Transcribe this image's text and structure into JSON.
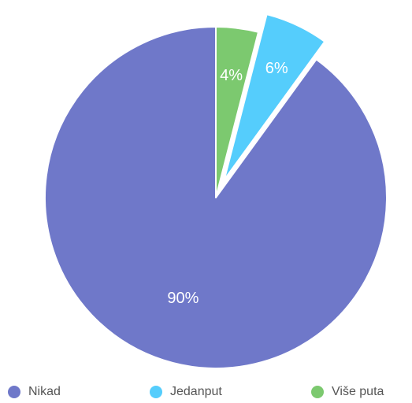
{
  "chart_data": {
    "type": "pie",
    "categories": [
      "Nikad",
      "Jedanput",
      "Više puta"
    ],
    "values": [
      90,
      6,
      4
    ],
    "data_labels": [
      "90%",
      "6%",
      "4%"
    ],
    "exploded": [
      "Jedanput"
    ],
    "colors": [
      "#6f78c9",
      "#55cdfc",
      "#7cc96f"
    ],
    "legend_position": "bottom"
  },
  "legend": {
    "items": [
      {
        "label": "Nikad",
        "color": "#6f78c9"
      },
      {
        "label": "Jedanput",
        "color": "#55cdfc"
      },
      {
        "label": "Više puta",
        "color": "#7cc96f"
      }
    ]
  }
}
